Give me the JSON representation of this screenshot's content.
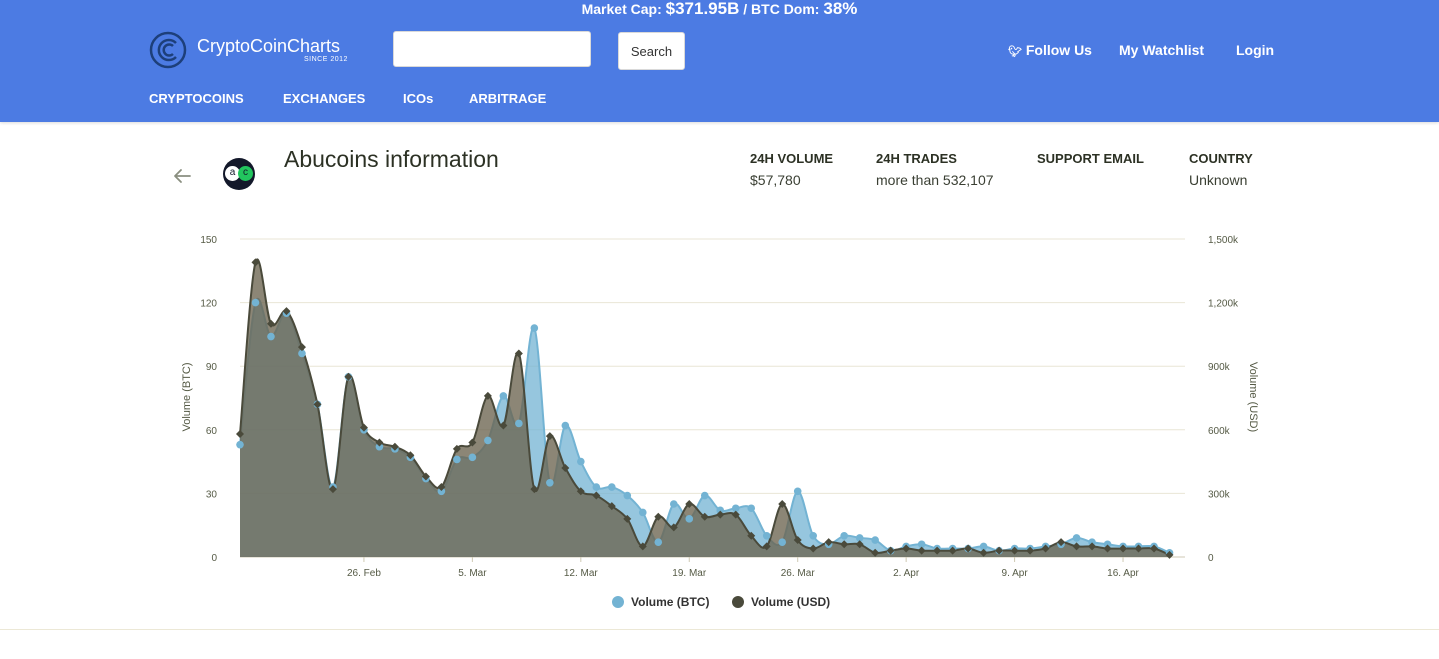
{
  "header": {
    "market_cap_label": "Market Cap:",
    "market_cap_value": "$371.95B",
    "dom_label": "/ BTC Dom:",
    "dom_value": "38%",
    "logo_name": "CryptoCoinCharts",
    "logo_since": "SINCE 2012",
    "search_placeholder": "",
    "search_button": "Search",
    "follow_label": "Follow Us",
    "watchlist_label": "My Watchlist",
    "login_label": "Login",
    "nav": [
      "CRYPTOCOINS",
      "EXCHANGES",
      "ICOs",
      "ARBITRAGE"
    ]
  },
  "page": {
    "title": "Abucoins information",
    "logo_letters": [
      "a",
      "c"
    ],
    "stats": [
      {
        "label": "24H VOLUME",
        "value": "$57,780"
      },
      {
        "label": "24H TRADES",
        "value": "more than 532,107"
      },
      {
        "label": "SUPPORT EMAIL",
        "value": ""
      },
      {
        "label": "COUNTRY",
        "value": "Unknown"
      }
    ]
  },
  "colors": {
    "header_bg": "#4c7be3",
    "btc_series": "#73b3d3",
    "usd_series": "#4a4a3b",
    "usd_fill": "#6b6450",
    "text_dark": "#2c3124"
  },
  "chart_data": {
    "type": "area",
    "x_axis": {
      "start": "2018-02-18",
      "end": "2018-04-20",
      "tick_labels": [
        "26. Feb",
        "5. Mar",
        "12. Mar",
        "19. Mar",
        "26. Mar",
        "2. Apr",
        "9. Apr",
        "16. Apr"
      ],
      "tick_dates": [
        "2018-02-26",
        "2018-03-05",
        "2018-03-12",
        "2018-03-19",
        "2018-03-26",
        "2018-04-02",
        "2018-04-09",
        "2018-04-16"
      ]
    },
    "y_left": {
      "label": "Volume (BTC)",
      "ylim": [
        0,
        150
      ],
      "ticks": [
        "0",
        "30",
        "60",
        "90",
        "120",
        "150"
      ]
    },
    "y_right": {
      "label": "Volume (USD)",
      "ylim": [
        0,
        1500000
      ],
      "ticks": [
        "0",
        "300k",
        "600k",
        "900k",
        "1,200k",
        "1,500k"
      ]
    },
    "grid": true,
    "legend_position": "bottom-center",
    "series": [
      {
        "name": "Volume (BTC)",
        "axis": "left",
        "values": [
          53,
          120,
          104,
          115,
          96,
          72,
          33,
          85,
          60,
          52,
          51,
          47,
          37,
          31,
          46,
          47,
          55,
          76,
          63,
          108,
          35,
          62,
          45,
          33,
          33,
          29,
          21,
          7,
          25,
          18,
          29,
          22,
          23,
          23,
          10,
          7,
          31,
          10,
          6,
          10,
          9,
          8,
          3,
          5,
          6,
          4,
          4,
          4,
          5,
          3,
          4,
          4,
          5,
          6,
          9,
          7,
          6,
          5,
          5,
          5,
          2
        ]
      },
      {
        "name": "Volume (USD)",
        "axis": "right",
        "values": [
          580000,
          1390000,
          1100000,
          1160000,
          990000,
          720000,
          320000,
          850000,
          610000,
          540000,
          520000,
          480000,
          380000,
          330000,
          510000,
          540000,
          760000,
          620000,
          960000,
          320000,
          570000,
          420000,
          310000,
          290000,
          240000,
          180000,
          50000,
          190000,
          140000,
          250000,
          190000,
          200000,
          200000,
          100000,
          50000,
          250000,
          80000,
          40000,
          70000,
          60000,
          60000,
          20000,
          30000,
          40000,
          30000,
          30000,
          30000,
          40000,
          20000,
          30000,
          30000,
          30000,
          40000,
          70000,
          50000,
          50000,
          40000,
          40000,
          40000,
          40000,
          10000
        ]
      }
    ]
  }
}
